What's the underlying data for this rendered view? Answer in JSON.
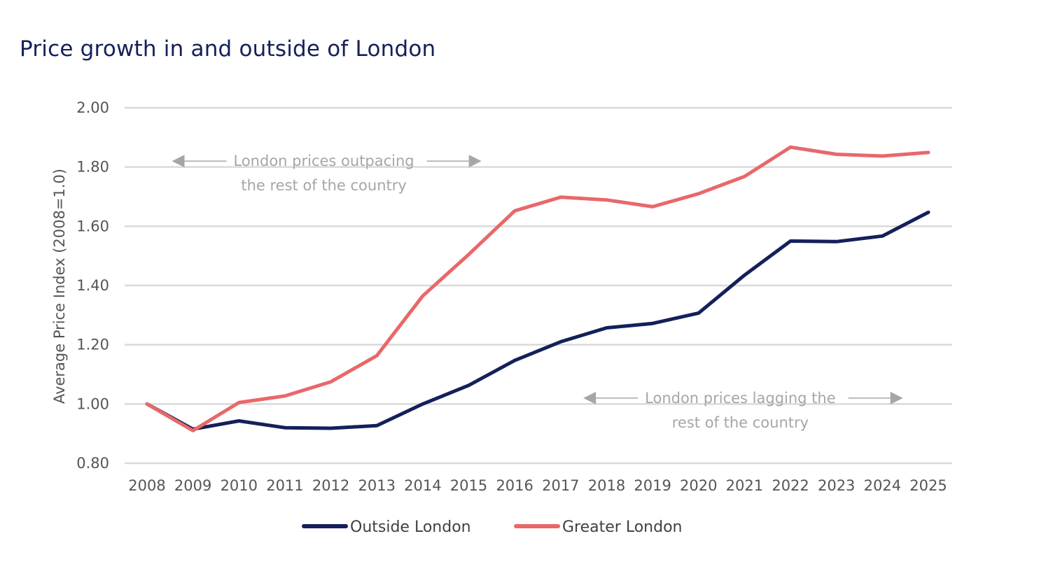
{
  "chart_data": {
    "type": "line",
    "title": "Price growth in and outside of London",
    "ylabel": "Average Price Index (2008=1.0)",
    "xlabel": "",
    "categories": [
      "2008",
      "2009",
      "2010",
      "2011",
      "2012",
      "2013",
      "2014",
      "2015",
      "2016",
      "2017",
      "2018",
      "2019",
      "2020",
      "2021",
      "2022",
      "2023",
      "2024",
      "2025"
    ],
    "ylim": [
      0.8,
      2.0
    ],
    "yticks": [
      "2.00",
      "1.80",
      "1.60",
      "1.40",
      "1.20",
      "1.00",
      "0.80"
    ],
    "grid": "horizontal",
    "legend_position": "bottom",
    "series": [
      {
        "name": "Outside London",
        "color": "#14205a",
        "values": [
          1.0,
          0.915,
          0.943,
          0.92,
          0.918,
          0.927,
          1.0,
          1.063,
          1.147,
          1.21,
          1.257,
          1.272,
          1.307,
          1.435,
          1.55,
          1.548,
          1.567,
          1.647
        ]
      },
      {
        "name": "Greater London",
        "color": "#e8686a",
        "values": [
          1.0,
          0.91,
          1.005,
          1.027,
          1.075,
          1.163,
          1.365,
          1.505,
          1.652,
          1.698,
          1.689,
          1.666,
          1.71,
          1.768,
          1.867,
          1.843,
          1.837,
          1.849
        ]
      }
    ],
    "annotations": [
      {
        "line1": "London prices outpacing",
        "line2": "the rest of the country",
        "center_year": "2012",
        "y": 1.82
      },
      {
        "line1": "London prices lagging the",
        "line2": "rest of the country",
        "center_year": "2021",
        "y": 1.02
      }
    ]
  },
  "colors": {
    "title": "#14205a",
    "grid": "#d9d9d9",
    "annotation": "#a6a6a6"
  }
}
